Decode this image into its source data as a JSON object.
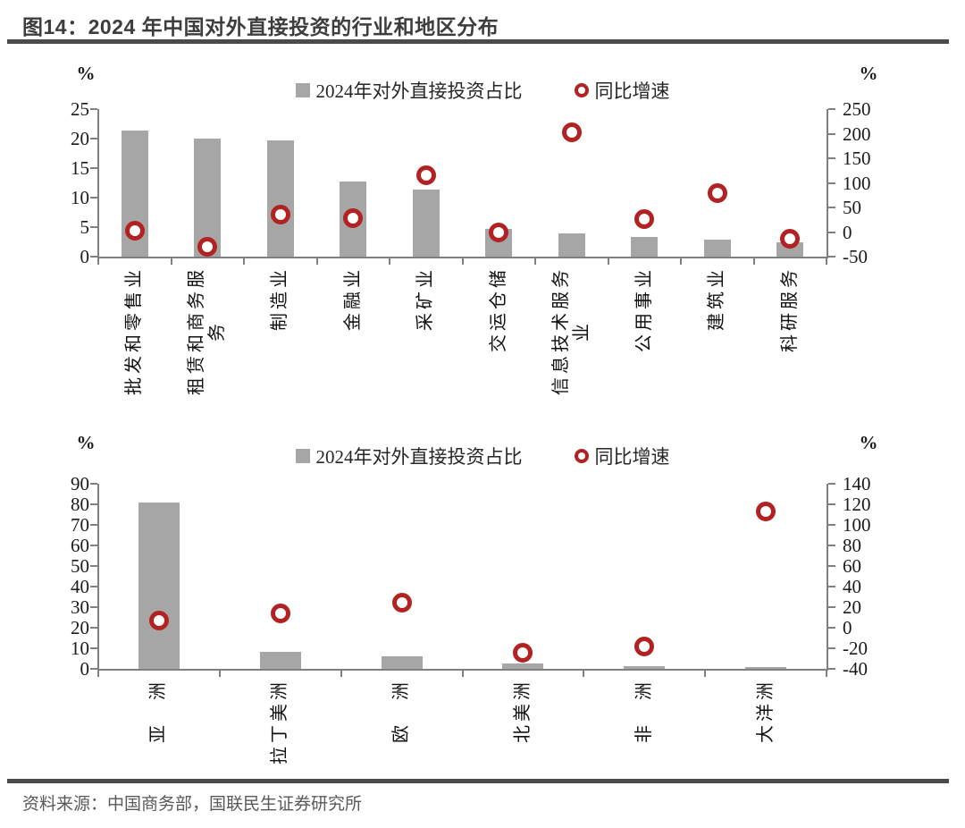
{
  "header": {
    "title": "图14：2024 年中国对外直接投资的行业和地区分布"
  },
  "legend": {
    "bar_label": "2024年对外直接投资占比",
    "marker_label": "同比增速"
  },
  "footer": {
    "source": "资料来源：中国商务部，国联民生证券研究所"
  },
  "colors": {
    "bar": "#a6a6a6",
    "marker": "#b22222",
    "axis": "#808080",
    "title_text": "#3d3d3d",
    "rule": "#4a4a4a",
    "source_text": "#595959",
    "tick_text": "#1a1a1a"
  },
  "chart_data": [
    {
      "type": "bar",
      "overlay": "scatter",
      "title": "",
      "legend_position": "top-center",
      "grid": false,
      "categories": [
        "批发和零售业",
        "租赁和商务服务",
        "制造业",
        "金融业",
        "采矿业",
        "交运仓储",
        "信息技术服务业",
        "公用事业",
        "建筑业",
        "科研服务"
      ],
      "category_lines": [
        [
          "批发和零售业"
        ],
        [
          "租赁和商务服",
          "务"
        ],
        [
          "制造业"
        ],
        [
          "金融业"
        ],
        [
          "采矿业"
        ],
        [
          "交运仓储"
        ],
        [
          "信息技术服务",
          "业"
        ],
        [
          "公用事业"
        ],
        [
          "建筑业"
        ],
        [
          "科研服务"
        ]
      ],
      "series": [
        {
          "name": "2024年对外直接投资占比",
          "type": "bar",
          "axis": "left",
          "values": [
            21.3,
            20.0,
            19.7,
            12.7,
            11.3,
            4.7,
            3.9,
            3.3,
            2.9,
            2.5
          ]
        },
        {
          "name": "同比增速",
          "type": "scatter",
          "axis": "right",
          "values": [
            2,
            -30,
            36,
            28,
            115,
            0,
            203,
            26,
            80,
            -13
          ]
        }
      ],
      "left_axis": {
        "label": "%",
        "min": 0,
        "max": 25,
        "ticks": [
          25,
          20,
          15,
          10,
          5,
          0
        ]
      },
      "right_axis": {
        "label": "%",
        "min": -50,
        "max": 250,
        "ticks": [
          250,
          200,
          150,
          100,
          50,
          0,
          -50
        ]
      }
    },
    {
      "type": "bar",
      "overlay": "scatter",
      "title": "",
      "legend_position": "top-center",
      "grid": false,
      "categories": [
        "亚　洲",
        "拉丁美洲",
        "欧　洲",
        "北美洲",
        "非　洲",
        "大洋洲"
      ],
      "category_lines": [
        [
          "亚　洲"
        ],
        [
          "拉丁美洲"
        ],
        [
          "欧　洲"
        ],
        [
          "北美洲"
        ],
        [
          "非　洲"
        ],
        [
          "大洋洲"
        ]
      ],
      "series": [
        {
          "name": "2024年对外直接投资占比",
          "type": "bar",
          "axis": "left",
          "values": [
            80.8,
            8.1,
            6.3,
            2.6,
            1.4,
            0.9
          ]
        },
        {
          "name": "同比增速",
          "type": "scatter",
          "axis": "right",
          "values": [
            7,
            14,
            24,
            -24,
            -18,
            113
          ]
        }
      ],
      "left_axis": {
        "label": "%",
        "min": 0,
        "max": 90,
        "ticks": [
          90,
          80,
          70,
          60,
          50,
          40,
          30,
          20,
          10,
          0
        ]
      },
      "right_axis": {
        "label": "%",
        "min": -40,
        "max": 140,
        "ticks": [
          140,
          120,
          100,
          80,
          60,
          40,
          20,
          0,
          -20,
          -40
        ]
      }
    }
  ]
}
